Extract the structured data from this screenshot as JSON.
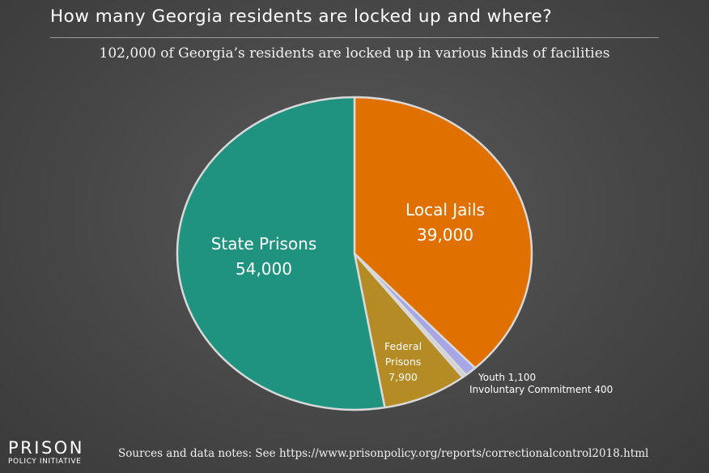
{
  "title": "How many Georgia residents are locked up and where?",
  "subtitle": "102,000 of Georgia’s residents are locked up in various kinds of facilities",
  "logo": {
    "top": "PRISON",
    "bottom": "POLICY INITIATIVE"
  },
  "sources": "Sources and data notes: See https://www.prisonpolicy.org/reports/correctionalcontrol2018.html",
  "chart_data": {
    "type": "pie",
    "title": "How many Georgia residents are locked up and where?",
    "total": 102000,
    "slices": [
      {
        "name": "Local Jails",
        "label_lines": [
          "Local Jails",
          "39,000"
        ],
        "value": 39000,
        "color": "#e07000"
      },
      {
        "name": "Youth",
        "label_lines": [
          "Youth 1,100"
        ],
        "value": 1100,
        "color": "#a7a6e6"
      },
      {
        "name": "Involuntary Commitment",
        "label_lines": [
          "Involuntary Commitment 400"
        ],
        "value": 400,
        "color": "#cfcfcf"
      },
      {
        "name": "Federal Prisons",
        "label_lines": [
          "Federal",
          "Prisons",
          "7,900"
        ],
        "value": 7900,
        "color": "#b58b26"
      },
      {
        "name": "State Prisons",
        "label_lines": [
          "State Prisons",
          "54,000"
        ],
        "value": 54000,
        "color": "#209380"
      }
    ]
  }
}
